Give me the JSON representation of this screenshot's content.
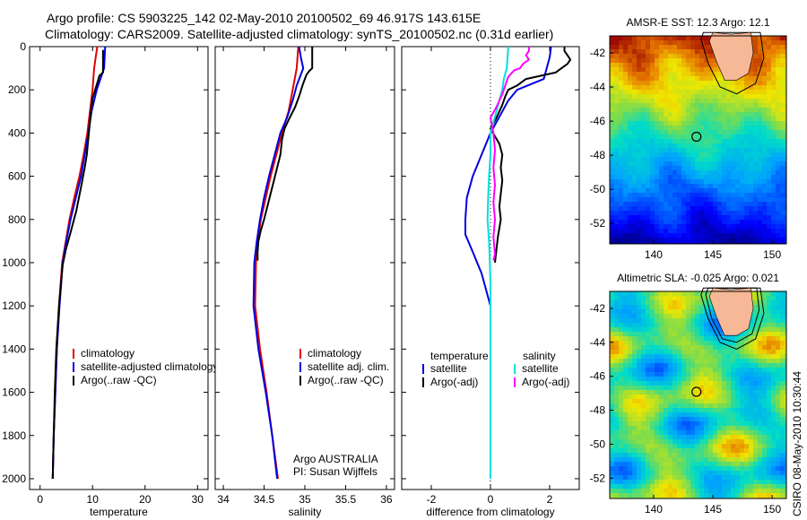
{
  "header": {
    "line1": "Argo profile: CS 5903225_142 02-May-2010 20100502_69 46.917S 143.615E",
    "line2": "Climatology: CARS2009. Satellite-adjusted climatology: synTS_20100502.nc (0.31d earlier)"
  },
  "side_text": "CSIRO 08-May-2010 10:30:44",
  "colors": {
    "climatology": "#e00000",
    "satellite": "#0000e0",
    "argo": "#000000",
    "sal_satellite": "#00e0e0",
    "sal_argo": "#ff00ff"
  },
  "chart_data": [
    {
      "type": "line",
      "title": "",
      "xlabel": "temperature",
      "ylabel": "",
      "xlim": [
        -2,
        32
      ],
      "ylim": [
        2050,
        0
      ],
      "xticks": [
        0,
        10,
        20,
        30
      ],
      "yticks": [
        0,
        200,
        400,
        600,
        800,
        1000,
        1200,
        1400,
        1600,
        1800,
        2000
      ],
      "legend": {
        "placement": "bottom-right",
        "entries": [
          "climatology",
          "satellite-adjusted climatology",
          "Argo(..raw -QC)"
        ]
      },
      "series": [
        {
          "name": "climatology",
          "color": "#e00000",
          "points": [
            [
              10.9,
              0
            ],
            [
              10.6,
              50
            ],
            [
              10.3,
              100
            ],
            [
              10.0,
              200
            ],
            [
              9.5,
              300
            ],
            [
              9.0,
              400
            ],
            [
              8.3,
              500
            ],
            [
              7.5,
              600
            ],
            [
              6.5,
              700
            ],
            [
              5.6,
              800
            ],
            [
              4.9,
              900
            ],
            [
              4.2,
              1000
            ],
            [
              3.6,
              1200
            ],
            [
              3.2,
              1400
            ],
            [
              2.9,
              1600
            ],
            [
              2.6,
              1800
            ],
            [
              2.4,
              2000
            ]
          ]
        },
        {
          "name": "satellite-adjusted climatology",
          "color": "#0000e0",
          "points": [
            [
              12.4,
              0
            ],
            [
              12.3,
              50
            ],
            [
              12.2,
              100
            ],
            [
              11.5,
              150
            ],
            [
              10.8,
              200
            ],
            [
              9.8,
              300
            ],
            [
              9.2,
              400
            ],
            [
              8.5,
              500
            ],
            [
              7.8,
              600
            ],
            [
              6.8,
              700
            ],
            [
              5.8,
              800
            ],
            [
              5.0,
              900
            ],
            [
              4.3,
              1000
            ],
            [
              3.7,
              1200
            ],
            [
              3.2,
              1400
            ],
            [
              2.9,
              1600
            ],
            [
              2.6,
              1800
            ],
            [
              2.4,
              2000
            ]
          ]
        },
        {
          "name": "Argo(..raw -QC)",
          "color": "#000000",
          "points": [
            [
              12.0,
              15
            ],
            [
              12.0,
              100
            ],
            [
              12.0,
              120
            ],
            [
              11.3,
              135
            ],
            [
              11.0,
              160
            ],
            [
              10.0,
              240
            ],
            [
              9.6,
              320
            ],
            [
              9.3,
              400
            ],
            [
              8.9,
              500
            ],
            [
              8.5,
              560
            ],
            [
              7.8,
              650
            ],
            [
              6.9,
              760
            ],
            [
              5.8,
              860
            ],
            [
              4.9,
              940
            ],
            [
              4.3,
              1010
            ],
            [
              3.6,
              1200
            ],
            [
              3.1,
              1400
            ],
            [
              2.8,
              1600
            ],
            [
              2.6,
              1800
            ],
            [
              2.4,
              2000
            ]
          ]
        }
      ]
    },
    {
      "type": "line",
      "title": "",
      "xlabel": "salinity",
      "ylabel": "",
      "xlim": [
        33.9,
        36.1
      ],
      "ylim": [
        2050,
        0
      ],
      "xticks": [
        34,
        34.5,
        35,
        35.5,
        36
      ],
      "yticks": [
        0,
        200,
        400,
        600,
        800,
        1000,
        1200,
        1400,
        1600,
        1800,
        2000
      ],
      "legend": {
        "placement": "bottom-right",
        "entries": [
          "climatology",
          "satellite adj. clim.",
          "Argo(..raw -QC)"
        ]
      },
      "annotation": [
        "Argo AUSTRALIA",
        "PI: Susan Wijffels"
      ],
      "series": [
        {
          "name": "climatology",
          "color": "#e00000",
          "points": [
            [
              34.92,
              0
            ],
            [
              34.9,
              100
            ],
            [
              34.85,
              200
            ],
            [
              34.8,
              300
            ],
            [
              34.72,
              400
            ],
            [
              34.65,
              500
            ],
            [
              34.58,
              600
            ],
            [
              34.52,
              700
            ],
            [
              34.46,
              800
            ],
            [
              34.42,
              900
            ],
            [
              34.4,
              1000
            ],
            [
              34.39,
              1200
            ],
            [
              34.45,
              1400
            ],
            [
              34.53,
              1600
            ],
            [
              34.6,
              1800
            ],
            [
              34.67,
              2000
            ]
          ]
        },
        {
          "name": "satellite adj. clim.",
          "color": "#0000e0",
          "points": [
            [
              34.93,
              0
            ],
            [
              34.95,
              50
            ],
            [
              34.98,
              100
            ],
            [
              34.9,
              180
            ],
            [
              34.85,
              250
            ],
            [
              34.78,
              330
            ],
            [
              34.7,
              400
            ],
            [
              34.63,
              500
            ],
            [
              34.56,
              600
            ],
            [
              34.5,
              700
            ],
            [
              34.45,
              800
            ],
            [
              34.41,
              900
            ],
            [
              34.38,
              1000
            ],
            [
              34.37,
              1200
            ],
            [
              34.43,
              1400
            ],
            [
              34.52,
              1600
            ],
            [
              34.6,
              1800
            ],
            [
              34.66,
              2000
            ]
          ]
        },
        {
          "name": "Argo(..raw -QC)",
          "color": "#000000",
          "points": [
            [
              35.09,
              0
            ],
            [
              35.09,
              100
            ],
            [
              35.06,
              110
            ],
            [
              35.02,
              130
            ],
            [
              34.97,
              180
            ],
            [
              34.93,
              230
            ],
            [
              34.88,
              280
            ],
            [
              34.8,
              340
            ],
            [
              34.75,
              380
            ],
            [
              34.72,
              430
            ],
            [
              34.7,
              500
            ],
            [
              34.66,
              560
            ],
            [
              34.62,
              620
            ],
            [
              34.58,
              680
            ],
            [
              34.54,
              740
            ],
            [
              34.5,
              800
            ],
            [
              34.46,
              850
            ],
            [
              34.43,
              900
            ],
            [
              34.42,
              950
            ],
            [
              34.42,
              990
            ]
          ]
        }
      ]
    },
    {
      "type": "line",
      "title": "",
      "xlabel": "difference from climatology",
      "ylabel": "",
      "xlim": [
        -3,
        3
      ],
      "ylim": [
        2050,
        0
      ],
      "xticks": [
        -2,
        0,
        2
      ],
      "yticks": [
        0,
        200,
        400,
        600,
        800,
        1000,
        1200,
        1400,
        1600,
        1800,
        2000
      ],
      "legend": {
        "placement": "bottom",
        "temperature_title": "temperature",
        "salinity_title": "salinity",
        "entries": [
          "satellite",
          "Argo(-adj)",
          "satellite",
          "Argo(-adj)"
        ]
      },
      "series": [
        {
          "name": "satellite",
          "group": "temperature",
          "color": "#0000e0",
          "points": [
            [
              2.05,
              0
            ],
            [
              2.0,
              50
            ],
            [
              1.9,
              100
            ],
            [
              1.8,
              150
            ],
            [
              0.9,
              200
            ],
            [
              0.6,
              250
            ],
            [
              0.4,
              300
            ],
            [
              0.2,
              350
            ],
            [
              0.0,
              400
            ],
            [
              -0.3,
              500
            ],
            [
              -0.6,
              600
            ],
            [
              -0.8,
              700
            ],
            [
              -0.85,
              800
            ],
            [
              -0.85,
              870
            ],
            [
              -0.6,
              950
            ],
            [
              -0.3,
              1050
            ],
            [
              -0.1,
              1150
            ],
            [
              0,
              1200
            ],
            [
              0,
              2000
            ]
          ]
        },
        {
          "name": "Argo(-adj)",
          "group": "temperature",
          "color": "#000000",
          "points": [
            [
              2.5,
              0
            ],
            [
              2.5,
              20
            ],
            [
              2.6,
              40
            ],
            [
              2.7,
              60
            ],
            [
              2.6,
              80
            ],
            [
              2.4,
              100
            ],
            [
              2.2,
              120
            ],
            [
              1.2,
              150
            ],
            [
              0.9,
              180
            ],
            [
              0.6,
              200
            ],
            [
              0.5,
              230
            ],
            [
              0.4,
              270
            ],
            [
              0.3,
              300
            ],
            [
              0.2,
              330
            ],
            [
              0.0,
              380
            ],
            [
              0.3,
              450
            ],
            [
              0.4,
              500
            ],
            [
              0.35,
              560
            ],
            [
              0.4,
              620
            ],
            [
              0.35,
              680
            ],
            [
              0.3,
              740
            ],
            [
              0.35,
              800
            ],
            [
              0.25,
              880
            ],
            [
              0.2,
              940
            ],
            [
              0.15,
              1000
            ]
          ]
        },
        {
          "name": "satellite",
          "group": "salinity",
          "color": "#00e0e0",
          "points": [
            [
              0.6,
              0
            ],
            [
              0.58,
              50
            ],
            [
              0.55,
              100
            ],
            [
              0.45,
              150
            ],
            [
              0.4,
              200
            ],
            [
              0.3,
              250
            ],
            [
              0.2,
              300
            ],
            [
              0.1,
              350
            ],
            [
              0.0,
              400
            ],
            [
              0.0,
              500
            ],
            [
              -0.05,
              600
            ],
            [
              -0.08,
              700
            ],
            [
              -0.1,
              800
            ],
            [
              -0.05,
              900
            ],
            [
              -0.02,
              1000
            ],
            [
              0,
              1100
            ],
            [
              0,
              1500
            ],
            [
              0,
              2000
            ]
          ]
        },
        {
          "name": "Argo(-adj)",
          "group": "salinity",
          "color": "#ff00ff",
          "points": [
            [
              1.3,
              0
            ],
            [
              1.3,
              20
            ],
            [
              1.2,
              40
            ],
            [
              1.3,
              60
            ],
            [
              1.1,
              80
            ],
            [
              1.0,
              100
            ],
            [
              0.8,
              110
            ],
            [
              0.6,
              140
            ],
            [
              0.5,
              180
            ],
            [
              0.4,
              220
            ],
            [
              0.2,
              280
            ],
            [
              0.0,
              330
            ],
            [
              0.1,
              400
            ],
            [
              0.15,
              480
            ],
            [
              0.1,
              560
            ],
            [
              0.15,
              640
            ],
            [
              0.1,
              720
            ],
            [
              0.15,
              800
            ],
            [
              0.1,
              880
            ],
            [
              0.15,
              960
            ],
            [
              0.1,
              990
            ]
          ]
        }
      ]
    },
    {
      "type": "heatmap",
      "title": "AMSR-E SST: 12.3 Argo: 12.1",
      "xlim": [
        136.3,
        151.2
      ],
      "ylim": [
        -53.2,
        -41.0
      ],
      "xticks": [
        140,
        145,
        150
      ],
      "yticks": [
        -42,
        -44,
        -46,
        -48,
        -50,
        -52
      ],
      "argo_position": [
        143.615,
        -46.917
      ],
      "field": "sea surface temperature"
    },
    {
      "type": "heatmap",
      "title": "Altimetric SLA: -0.025 Argo: 0.021",
      "xlim": [
        136.3,
        151.2
      ],
      "ylim": [
        -53.2,
        -41.0
      ],
      "xticks": [
        140,
        145,
        150
      ],
      "yticks": [
        -42,
        -44,
        -46,
        -48,
        -50,
        -52
      ],
      "argo_position": [
        143.615,
        -46.917
      ],
      "field": "sea level anomaly"
    }
  ]
}
